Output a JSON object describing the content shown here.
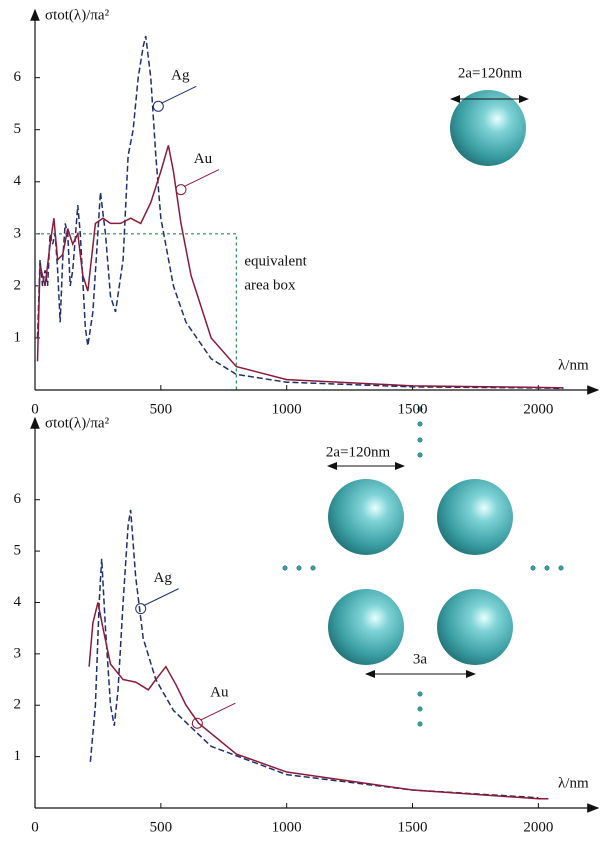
{
  "chart_data": [
    {
      "type": "line",
      "ylabel": "σtot(λ)/πa²",
      "xlabel": "λ/nm",
      "xlim": [
        0,
        2237
      ],
      "ylim": [
        0,
        7.3
      ],
      "xticks": [
        0,
        500,
        1000,
        1500,
        2000
      ],
      "yticks": [
        1,
        2,
        3,
        4,
        5,
        6
      ],
      "series": [
        {
          "name": "Ag",
          "color": "#1f2f6e",
          "dashed": true,
          "x": [
            10,
            20,
            30,
            40,
            50,
            60,
            70,
            80,
            90,
            100,
            110,
            120,
            130,
            140,
            150,
            170,
            180,
            200,
            210,
            230,
            260,
            280,
            300,
            320,
            350,
            370,
            390,
            410,
            430,
            440,
            460,
            480,
            500,
            550,
            600,
            700,
            800,
            1000,
            1500,
            2000,
            2100
          ],
          "values": [
            1.0,
            2.5,
            2.0,
            2.3,
            2.0,
            3.0,
            2.8,
            3.0,
            2.3,
            1.3,
            2.5,
            3.2,
            3.0,
            2.0,
            2.3,
            3.55,
            3.0,
            1.2,
            0.85,
            1.5,
            3.8,
            3.0,
            1.8,
            1.5,
            2.5,
            4.5,
            5.0,
            6.0,
            6.6,
            6.8,
            6.0,
            4.5,
            3.3,
            2.0,
            1.3,
            0.6,
            0.3,
            0.15,
            0.06,
            0.04,
            0.03
          ]
        },
        {
          "name": "Au",
          "color": "#8b1a3a",
          "dashed": false,
          "x": [
            10,
            20,
            40,
            60,
            75,
            90,
            110,
            130,
            150,
            170,
            190,
            210,
            240,
            270,
            300,
            340,
            380,
            420,
            460,
            500,
            530,
            550,
            580,
            620,
            700,
            800,
            1000,
            1500,
            2000,
            2100
          ],
          "values": [
            0.55,
            2.4,
            2.0,
            2.8,
            3.3,
            2.5,
            2.6,
            3.1,
            2.8,
            3.0,
            2.2,
            1.9,
            3.2,
            3.3,
            3.2,
            3.2,
            3.3,
            3.2,
            3.6,
            4.2,
            4.7,
            4.2,
            3.2,
            2.2,
            1.0,
            0.45,
            0.2,
            0.08,
            0.05,
            0.04
          ]
        }
      ],
      "annotations": [
        {
          "text": "Ag",
          "x": 490,
          "y": 5.45
        },
        {
          "text": "Au",
          "x": 580,
          "y": 3.85
        }
      ],
      "box": {
        "x": [
          0,
          800
        ],
        "y": 3,
        "color": "#2e8b57",
        "label": [
          "equivalent",
          "area box"
        ]
      },
      "diagram": {
        "diameter_label": "2a=120nm"
      }
    },
    {
      "type": "line",
      "ylabel": "σtot(λ)/πa²",
      "xlabel": "λ/nm",
      "xlim": [
        0,
        2237
      ],
      "ylim": [
        0,
        7.59
      ],
      "xticks": [
        0,
        500,
        1000,
        1500,
        2000
      ],
      "yticks": [
        1,
        2,
        3,
        4,
        5,
        6
      ],
      "series": [
        {
          "name": "Ag",
          "color": "#1f2f6e",
          "dashed": true,
          "x": [
            220,
            240,
            255,
            265,
            280,
            300,
            315,
            330,
            350,
            370,
            380,
            400,
            430,
            480,
            550,
            700,
            1000,
            1500,
            2000
          ],
          "values": [
            0.9,
            2.0,
            4.0,
            4.85,
            3.5,
            2.0,
            1.6,
            2.3,
            4.0,
            5.5,
            5.8,
            4.5,
            3.3,
            2.5,
            1.9,
            1.2,
            0.65,
            0.35,
            0.2
          ]
        },
        {
          "name": "Au",
          "color": "#8b1a3a",
          "dashed": false,
          "x": [
            215,
            230,
            250,
            270,
            300,
            350,
            400,
            450,
            480,
            520,
            560,
            600,
            650,
            800,
            1000,
            1500,
            2000,
            2040
          ],
          "values": [
            2.75,
            3.6,
            4.0,
            3.5,
            2.8,
            2.5,
            2.45,
            2.3,
            2.5,
            2.75,
            2.4,
            2.0,
            1.65,
            1.05,
            0.7,
            0.35,
            0.18,
            0.18
          ]
        }
      ],
      "annotations": [
        {
          "text": "Ag",
          "x": 420,
          "y": 3.88
        },
        {
          "text": "Au",
          "x": 645,
          "y": 1.65
        }
      ],
      "diagram": {
        "diameter_label": "2a=120nm",
        "spacing_label": "3a"
      }
    }
  ]
}
